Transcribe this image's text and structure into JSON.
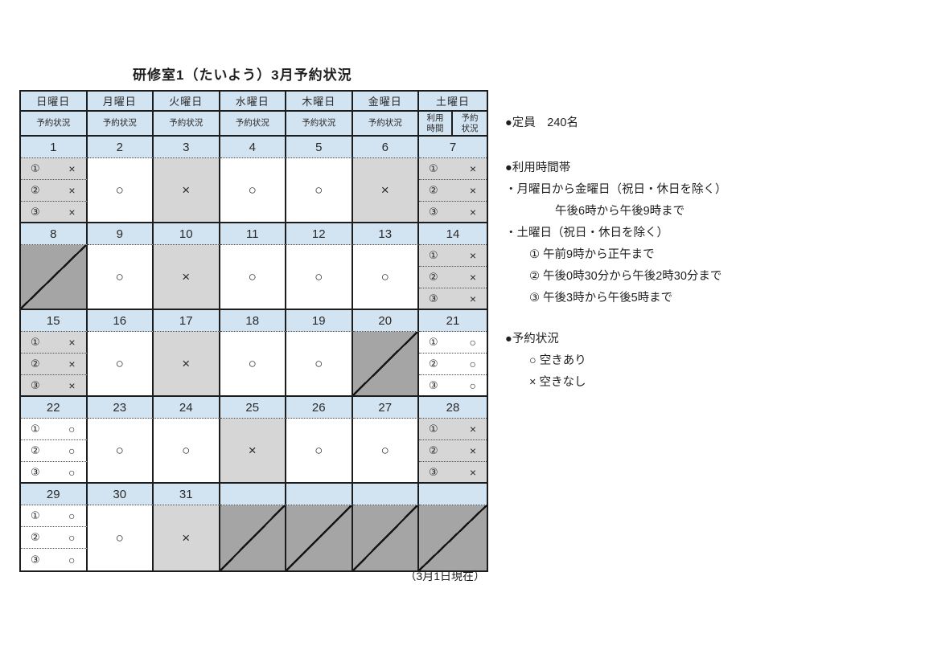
{
  "title": "研修室1（たいよう）3月予約状況",
  "footer_note": "（3月1日現在）",
  "colors": {
    "header_blue": "#d2e3f1",
    "booked_gray": "#d6d6d6",
    "closed_gray": "#a5a5a5",
    "border": "#1c1c1c"
  },
  "table": {
    "day_headers": [
      "日曜日",
      "月曜日",
      "火曜日",
      "水曜日",
      "木曜日",
      "金曜日",
      "土曜日"
    ],
    "status_header": "予約状況",
    "saturday_sub": [
      "利用\n時間",
      "予約\n状況"
    ],
    "weeks": [
      {
        "days": [
          {
            "date": "1",
            "type": "slots",
            "shade": "gray",
            "slots": [
              {
                "no": "①",
                "mark": "×"
              },
              {
                "no": "②",
                "mark": "×"
              },
              {
                "no": "③",
                "mark": "×"
              }
            ]
          },
          {
            "date": "2",
            "type": "single",
            "shade": "white",
            "mark": "○"
          },
          {
            "date": "3",
            "type": "single",
            "shade": "gray",
            "mark": "×"
          },
          {
            "date": "4",
            "type": "single",
            "shade": "white",
            "mark": "○"
          },
          {
            "date": "5",
            "type": "single",
            "shade": "white",
            "mark": "○"
          },
          {
            "date": "6",
            "type": "single",
            "shade": "gray",
            "mark": "×"
          },
          {
            "date": "7",
            "type": "slots",
            "shade": "gray",
            "slots": [
              {
                "no": "①",
                "mark": "×"
              },
              {
                "no": "②",
                "mark": "×"
              },
              {
                "no": "③",
                "mark": "×"
              }
            ]
          }
        ]
      },
      {
        "days": [
          {
            "date": "8",
            "type": "closed"
          },
          {
            "date": "9",
            "type": "single",
            "shade": "white",
            "mark": "○"
          },
          {
            "date": "10",
            "type": "single",
            "shade": "gray",
            "mark": "×"
          },
          {
            "date": "11",
            "type": "single",
            "shade": "white",
            "mark": "○"
          },
          {
            "date": "12",
            "type": "single",
            "shade": "white",
            "mark": "○"
          },
          {
            "date": "13",
            "type": "single",
            "shade": "white",
            "mark": "○"
          },
          {
            "date": "14",
            "type": "slots",
            "shade": "gray",
            "slots": [
              {
                "no": "①",
                "mark": "×"
              },
              {
                "no": "②",
                "mark": "×"
              },
              {
                "no": "③",
                "mark": "×"
              }
            ]
          }
        ]
      },
      {
        "days": [
          {
            "date": "15",
            "type": "slots",
            "shade": "gray",
            "slots": [
              {
                "no": "①",
                "mark": "×"
              },
              {
                "no": "②",
                "mark": "×"
              },
              {
                "no": "③",
                "mark": "×"
              }
            ]
          },
          {
            "date": "16",
            "type": "single",
            "shade": "white",
            "mark": "○"
          },
          {
            "date": "17",
            "type": "single",
            "shade": "gray",
            "mark": "×"
          },
          {
            "date": "18",
            "type": "single",
            "shade": "white",
            "mark": "○"
          },
          {
            "date": "19",
            "type": "single",
            "shade": "white",
            "mark": "○"
          },
          {
            "date": "20",
            "type": "closed"
          },
          {
            "date": "21",
            "type": "slots",
            "shade": "white",
            "slots": [
              {
                "no": "①",
                "mark": "○"
              },
              {
                "no": "②",
                "mark": "○"
              },
              {
                "no": "③",
                "mark": "○"
              }
            ]
          }
        ]
      },
      {
        "days": [
          {
            "date": "22",
            "type": "slots",
            "shade": "white",
            "slots": [
              {
                "no": "①",
                "mark": "○"
              },
              {
                "no": "②",
                "mark": "○"
              },
              {
                "no": "③",
                "mark": "○"
              }
            ]
          },
          {
            "date": "23",
            "type": "single",
            "shade": "white",
            "mark": "○"
          },
          {
            "date": "24",
            "type": "single",
            "shade": "white",
            "mark": "○"
          },
          {
            "date": "25",
            "type": "single",
            "shade": "gray",
            "mark": "×"
          },
          {
            "date": "26",
            "type": "single",
            "shade": "white",
            "mark": "○"
          },
          {
            "date": "27",
            "type": "single",
            "shade": "white",
            "mark": "○"
          },
          {
            "date": "28",
            "type": "slots",
            "shade": "gray",
            "slots": [
              {
                "no": "①",
                "mark": "×"
              },
              {
                "no": "②",
                "mark": "×"
              },
              {
                "no": "③",
                "mark": "×"
              }
            ]
          }
        ]
      },
      {
        "days": [
          {
            "date": "29",
            "type": "slots",
            "shade": "white",
            "slots": [
              {
                "no": "①",
                "mark": "○"
              },
              {
                "no": "②",
                "mark": "○"
              },
              {
                "no": "③",
                "mark": "○"
              }
            ]
          },
          {
            "date": "30",
            "type": "single",
            "shade": "white",
            "mark": "○"
          },
          {
            "date": "31",
            "type": "single",
            "shade": "gray",
            "mark": "×"
          },
          {
            "date": "",
            "type": "closed"
          },
          {
            "date": "",
            "type": "closed"
          },
          {
            "date": "",
            "type": "closed"
          },
          {
            "date": "",
            "type": "closed"
          }
        ]
      }
    ]
  },
  "legend": {
    "lines": [
      {
        "text": "●定員　240名",
        "indent": 0,
        "gap": ""
      },
      {
        "text": "●利用時間帯",
        "indent": 0,
        "gap": "lg"
      },
      {
        "text": "・月曜日から金曜日（祝日・休日を除く）",
        "indent": 0,
        "gap": ""
      },
      {
        "text": "午後6時から午後9時まで",
        "indent": 2,
        "gap": ""
      },
      {
        "text": "・土曜日（祝日・休日を除く）",
        "indent": 0,
        "gap": ""
      },
      {
        "text": "① 午前9時から正午まで",
        "indent": 1,
        "gap": ""
      },
      {
        "text": "② 午後0時30分から午後2時30分まで",
        "indent": 1,
        "gap": ""
      },
      {
        "text": "③ 午後3時から午後5時まで",
        "indent": 1,
        "gap": ""
      },
      {
        "text": "●予約状況",
        "indent": 0,
        "gap": "md"
      },
      {
        "text": "○ 空きあり",
        "indent": 1,
        "gap": ""
      },
      {
        "text": "× 空きなし",
        "indent": 1,
        "gap": ""
      }
    ]
  }
}
